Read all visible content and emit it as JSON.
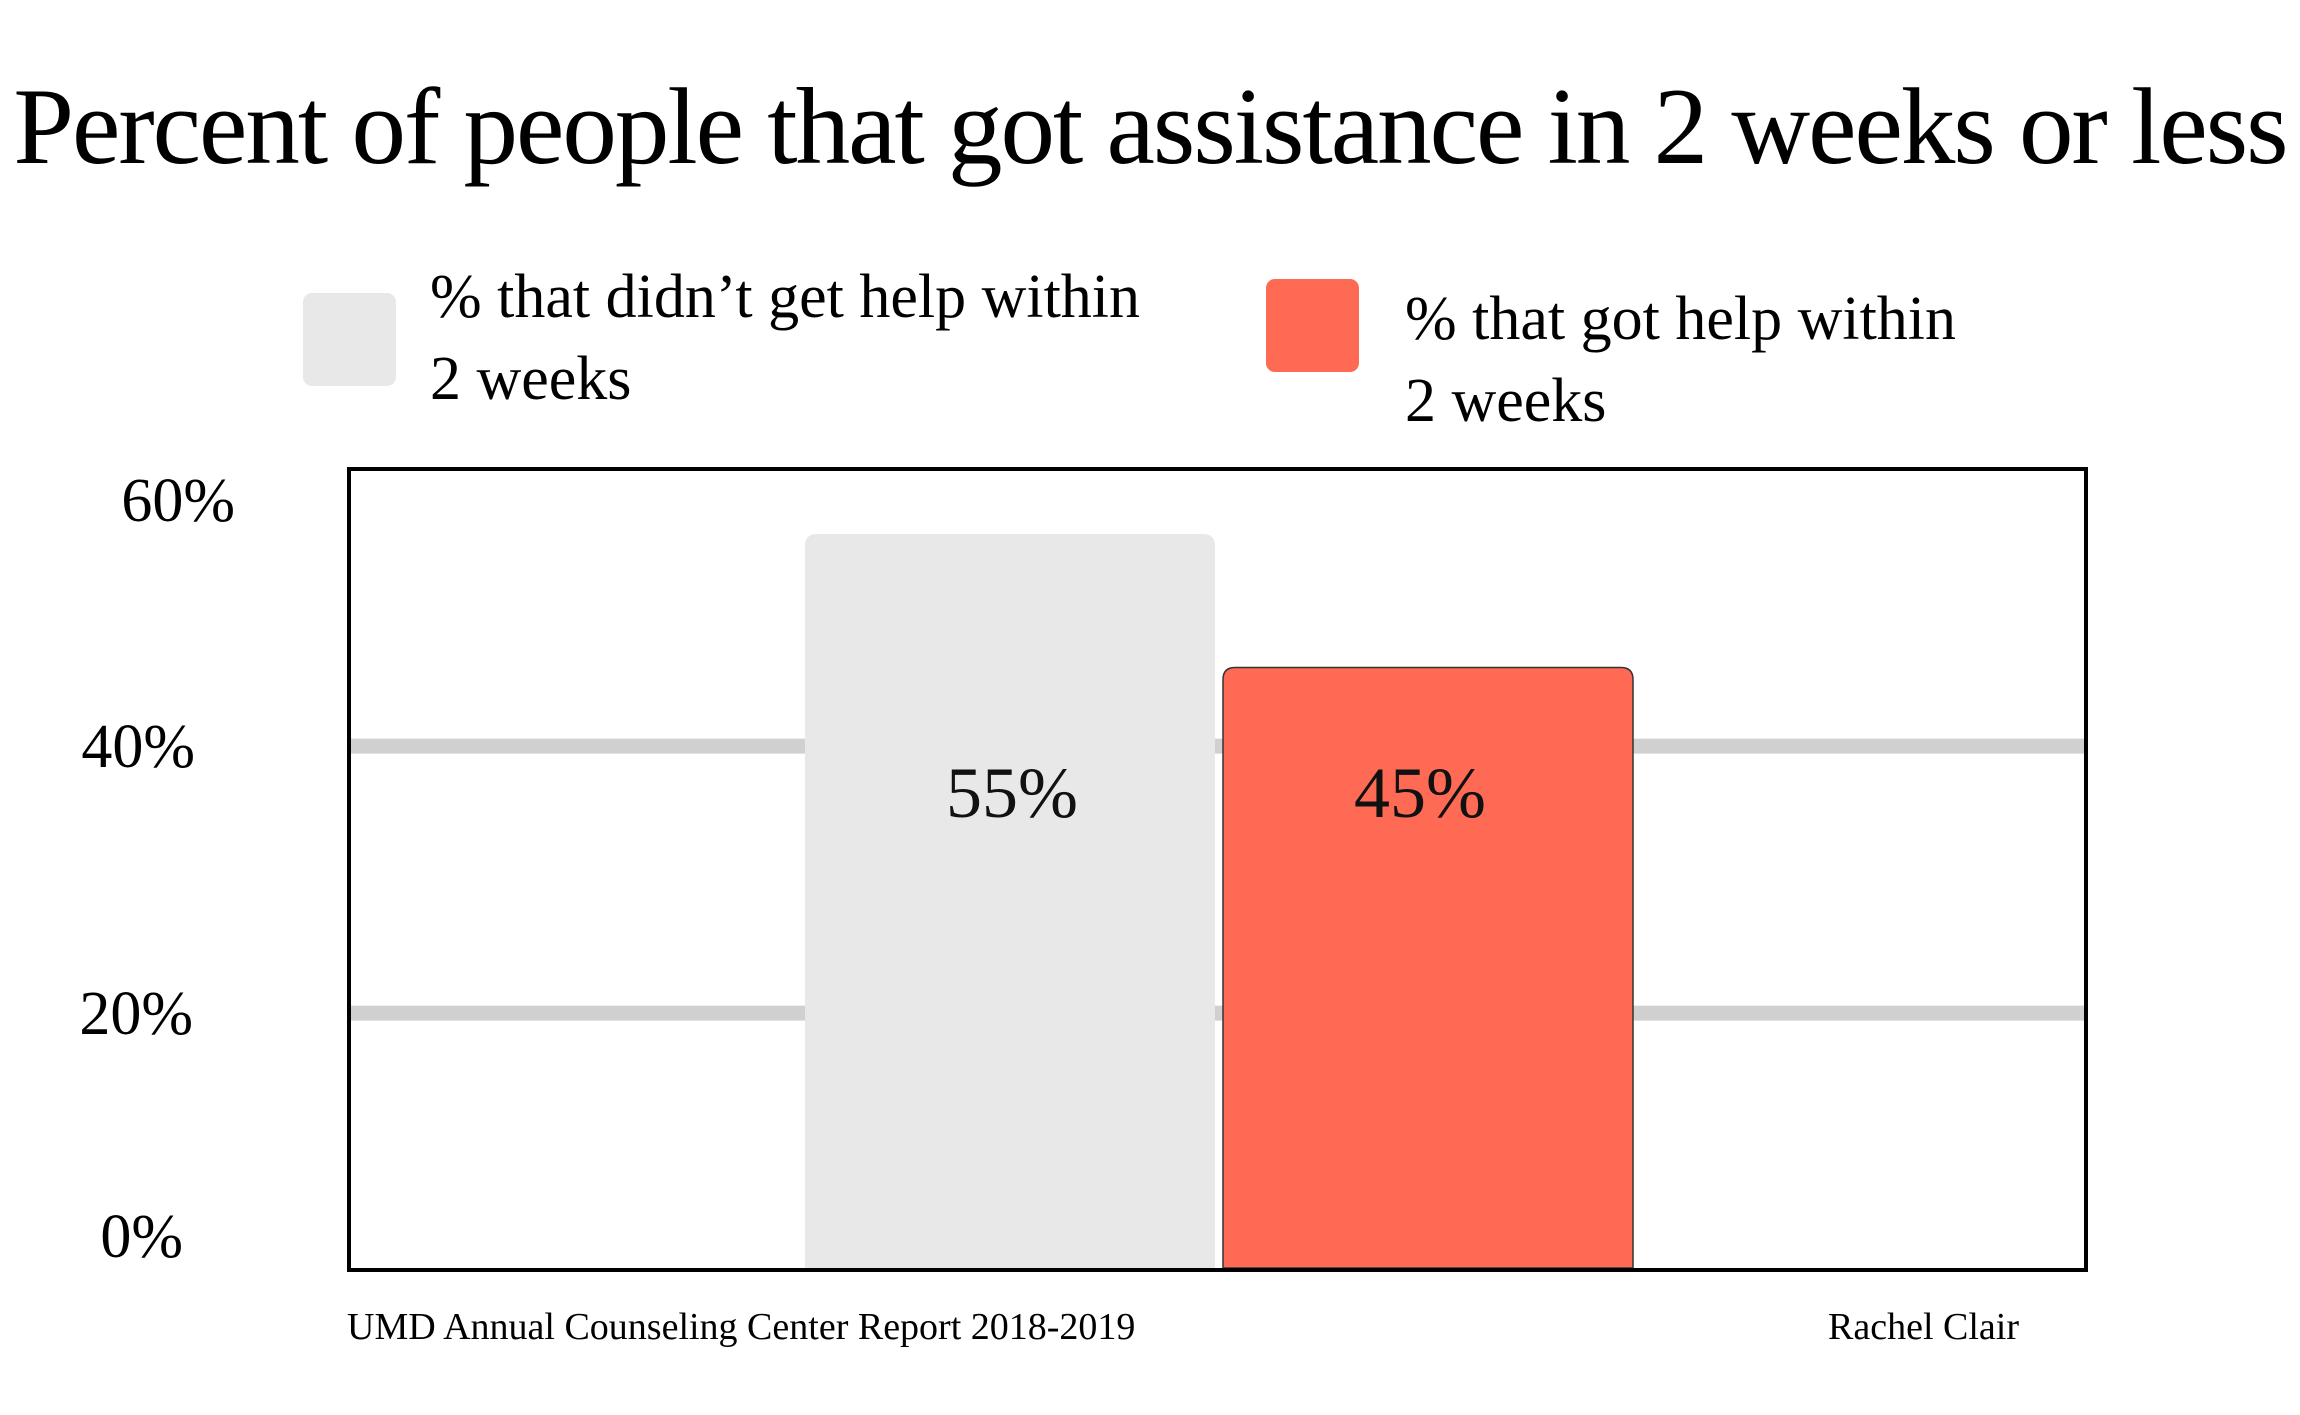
{
  "colors": {
    "didnt_get_help": "#e8e8e8",
    "got_help": "#ff6a55",
    "gridline": "#d0d0d0",
    "frame": "#000000"
  },
  "chart_data": {
    "type": "bar",
    "title": "Percent of people that got assistance in 2 weeks or less",
    "xlabel": "",
    "ylabel": "",
    "ylim": [
      0,
      60
    ],
    "yticks": [
      "60%",
      "40%",
      "20%",
      "0%"
    ],
    "ytick_values": [
      60,
      40,
      20,
      0
    ],
    "grid": true,
    "legend_position": "top",
    "series": [
      {
        "name": "% that didn’t get help within 2 weeks",
        "legend_lines": [
          "% that didn’t get help within",
          "2 weeks"
        ],
        "value": 55,
        "data_label": "55%",
        "color": "#e8e8e8"
      },
      {
        "name": "% that got help within 2 weeks",
        "legend_lines": [
          "% that got help within",
          "2 weeks"
        ],
        "value": 45,
        "data_label": "45%",
        "color": "#ff6a55"
      }
    ]
  },
  "footer": {
    "source": "UMD Annual Counseling Center Report 2018-2019",
    "author": "Rachel Clair"
  }
}
